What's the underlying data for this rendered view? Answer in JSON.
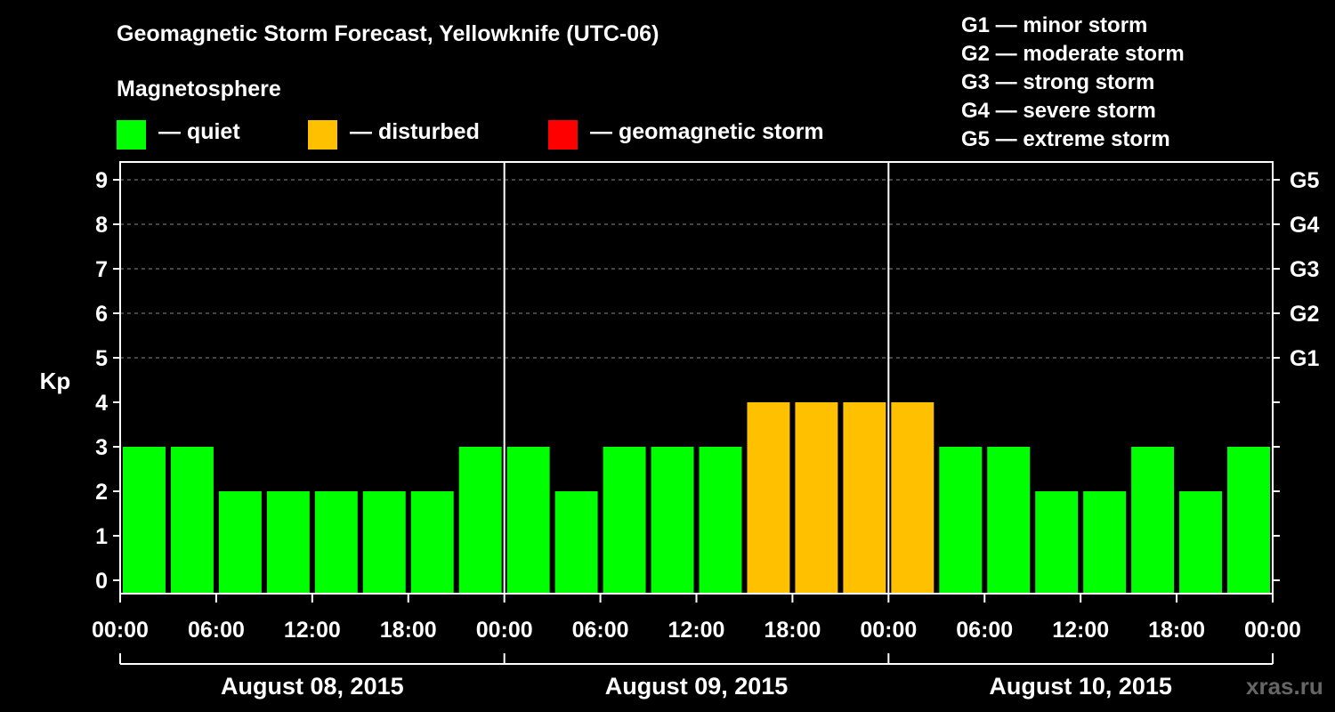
{
  "chart_data": {
    "type": "bar",
    "title": "Geomagnetic Storm Forecast, Yellowknife (UTC-06)",
    "ylabel": "Kp",
    "ylim": [
      0,
      9
    ],
    "yticks": [
      "0",
      "1",
      "2",
      "3",
      "4",
      "5",
      "6",
      "7",
      "8",
      "9"
    ],
    "right_axis": [
      {
        "kp": 5,
        "label": "G1"
      },
      {
        "kp": 6,
        "label": "G2"
      },
      {
        "kp": 7,
        "label": "G3"
      },
      {
        "kp": 8,
        "label": "G4"
      },
      {
        "kp": 9,
        "label": "G5"
      }
    ],
    "xticks": [
      "00:00",
      "06:00",
      "12:00",
      "18:00",
      "00:00",
      "06:00",
      "12:00",
      "18:00",
      "00:00",
      "06:00",
      "12:00",
      "18:00",
      "00:00"
    ],
    "days": [
      "August 08, 2015",
      "August 09, 2015",
      "August 10, 2015"
    ],
    "interval_hours": 3,
    "values": [
      3,
      3,
      2,
      2,
      2,
      2,
      2,
      3,
      3,
      2,
      3,
      3,
      3,
      4,
      4,
      4,
      4,
      3,
      3,
      2,
      2,
      3,
      2,
      3
    ],
    "status": [
      "quiet",
      "quiet",
      "quiet",
      "quiet",
      "quiet",
      "quiet",
      "quiet",
      "quiet",
      "quiet",
      "quiet",
      "quiet",
      "quiet",
      "quiet",
      "disturbed",
      "disturbed",
      "disturbed",
      "disturbed",
      "quiet",
      "quiet",
      "quiet",
      "quiet",
      "quiet",
      "quiet",
      "quiet"
    ],
    "colors": {
      "quiet": "#00ff00",
      "disturbed": "#ffc000",
      "storm": "#ff0000"
    },
    "grid": true
  },
  "legend": {
    "heading": "Magnetosphere",
    "quiet": "— quiet",
    "disturbed": "— disturbed",
    "storm": "— geomagnetic storm"
  },
  "storm_scale": [
    "G1 — minor storm",
    "G2 — moderate storm",
    "G3 — strong storm",
    "G4 — severe storm",
    "G5 — extreme storm"
  ],
  "brand": "xras.ru"
}
